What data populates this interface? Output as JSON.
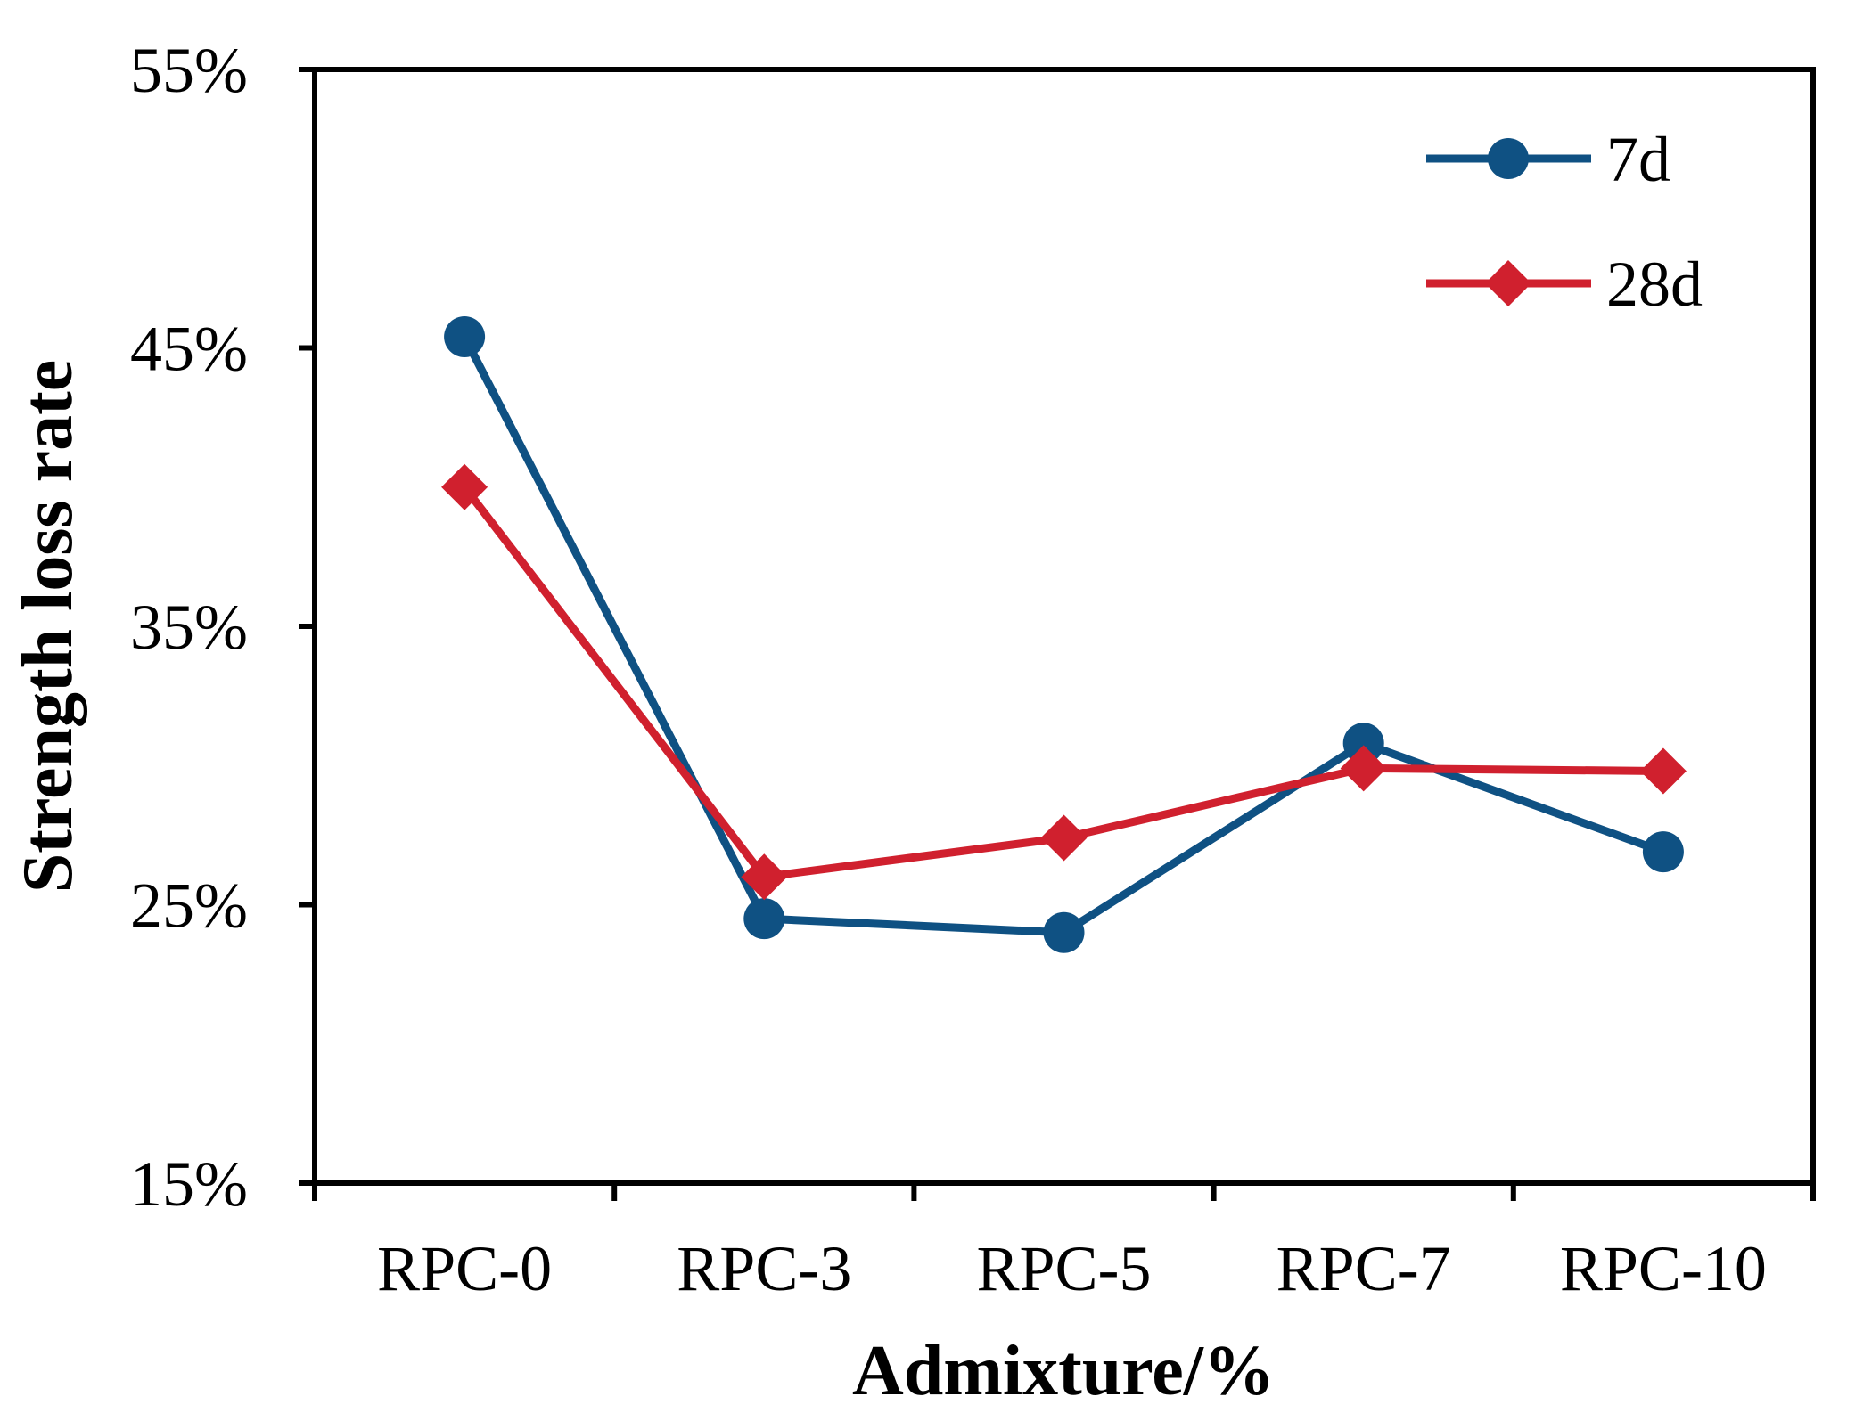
{
  "chart_data": {
    "type": "line",
    "title": "",
    "xlabel": "Admixture/%",
    "ylabel": "Strength loss rate",
    "categories": [
      "RPC-0",
      "RPC-3",
      "RPC-5",
      "RPC-7",
      "RPC-10"
    ],
    "ylim": [
      15,
      55
    ],
    "yticks": [
      15,
      25,
      35,
      45,
      55
    ],
    "ytick_labels": [
      "15%",
      "25%",
      "35%",
      "45%",
      "55%"
    ],
    "grid": false,
    "legend_position": "top-right",
    "series": [
      {
        "name": "7d",
        "color": "#0f5183",
        "marker": "circle",
        "values": [
          45.4,
          24.5,
          24.0,
          30.8,
          26.9
        ]
      },
      {
        "name": "28d",
        "color": "#d0202e",
        "marker": "diamond",
        "values": [
          40.0,
          26.0,
          27.4,
          29.9,
          29.8
        ]
      }
    ]
  }
}
